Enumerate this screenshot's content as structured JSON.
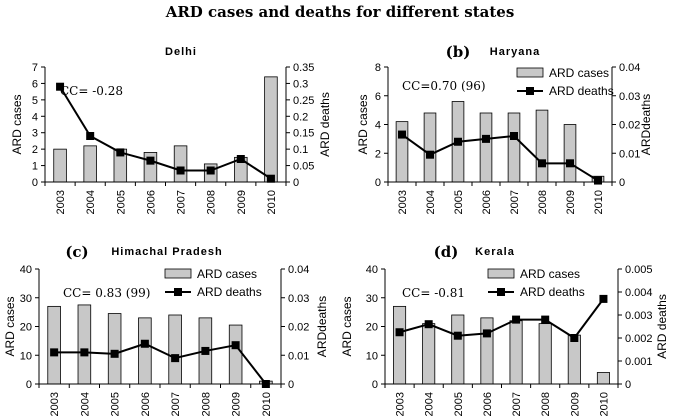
{
  "figure_title": "ARD cases and deaths for different states",
  "legend_labels": {
    "cases": "ARD cases",
    "deaths": "ARD deaths"
  },
  "colors": {
    "bar_fill": "#c8c8c8",
    "bar_stroke": "#000000",
    "line": "#000000"
  },
  "chart_data": [
    {
      "type": "bar",
      "panel_label": "",
      "title": "Delhi",
      "cc_label": "CC= -0.28",
      "categories": [
        "2003",
        "2004",
        "2005",
        "2006",
        "2007",
        "2008",
        "2009",
        "2010"
      ],
      "series": [
        {
          "name": "ARD cases",
          "type": "bar",
          "axis": "left",
          "values": [
            2.0,
            2.2,
            2.0,
            1.8,
            2.2,
            1.1,
            1.5,
            6.4
          ]
        },
        {
          "name": "ARD deaths",
          "type": "line",
          "axis": "right",
          "values": [
            0.29,
            0.14,
            0.09,
            0.065,
            0.035,
            0.035,
            0.07,
            0.01
          ]
        }
      ],
      "ylabel_left": "ARD cases",
      "ylim_left": [
        0,
        7
      ],
      "yticks_left": [
        "0",
        "1",
        "2",
        "3",
        "4",
        "5",
        "6",
        "7"
      ],
      "ylabel_right": "ARD deaths",
      "ylim_right": [
        0,
        0.35
      ],
      "yticks_right": [
        "0",
        "0.05",
        "0.1",
        "0.15",
        "0.2",
        "0.25",
        "0.3",
        "0.35"
      ],
      "legend_position": "none"
    },
    {
      "type": "bar",
      "panel_label": "(b)",
      "title": "Haryana",
      "cc_label": "CC=0.70 (96)",
      "categories": [
        "2003",
        "2004",
        "2005",
        "2006",
        "2007",
        "2008",
        "2009",
        "2010"
      ],
      "series": [
        {
          "name": "ARD cases",
          "type": "bar",
          "axis": "left",
          "values": [
            4.2,
            4.8,
            5.6,
            4.8,
            4.8,
            5.0,
            4.0,
            0.4
          ]
        },
        {
          "name": "ARD deaths",
          "type": "line",
          "axis": "right",
          "values": [
            0.0165,
            0.0095,
            0.014,
            0.015,
            0.016,
            0.0065,
            0.0065,
            0.0005
          ]
        }
      ],
      "ylabel_left": "ARD cases",
      "ylim_left": [
        0,
        8
      ],
      "yticks_left": [
        "0",
        "2",
        "4",
        "6",
        "8"
      ],
      "ylabel_right": "ARDdeaths",
      "ylim_right": [
        0,
        0.04
      ],
      "yticks_right": [
        "0",
        "0.01",
        "0.02",
        "0.03",
        "0.04"
      ],
      "legend_position": "top-right"
    },
    {
      "type": "bar",
      "panel_label": "(c)",
      "title": "Himachal Pradesh",
      "cc_label": "CC= 0.83 (99)",
      "categories": [
        "2003",
        "2004",
        "2005",
        "2006",
        "2007",
        "2008",
        "2009",
        "2010"
      ],
      "series": [
        {
          "name": "ARD cases",
          "type": "bar",
          "axis": "left",
          "values": [
            27,
            27.5,
            24.5,
            23,
            24,
            23,
            20.5,
            1
          ]
        },
        {
          "name": "ARD deaths",
          "type": "line",
          "axis": "right",
          "values": [
            0.011,
            0.011,
            0.0105,
            0.014,
            0.009,
            0.0115,
            0.0135,
            0.0
          ]
        }
      ],
      "ylabel_left": "ARD cases",
      "ylim_left": [
        0,
        40
      ],
      "yticks_left": [
        "0",
        "10",
        "20",
        "30",
        "40"
      ],
      "ylabel_right": "ARDdeaths",
      "ylim_right": [
        0,
        0.04
      ],
      "yticks_right": [
        "0",
        "0.01",
        "0.02",
        "0.03",
        "0.04"
      ],
      "legend_position": "top-right"
    },
    {
      "type": "bar",
      "panel_label": "(d)",
      "title": "Kerala",
      "cc_label": "CC= -0.81",
      "categories": [
        "2003",
        "2004",
        "2005",
        "2006",
        "2007",
        "2008",
        "2009",
        "2010"
      ],
      "series": [
        {
          "name": "ARD cases",
          "type": "bar",
          "axis": "left",
          "values": [
            27,
            21,
            24,
            23,
            22,
            21,
            17,
            4
          ]
        },
        {
          "name": "ARD deaths",
          "type": "line",
          "axis": "right",
          "values": [
            0.00225,
            0.0026,
            0.0021,
            0.0022,
            0.0028,
            0.0028,
            0.002,
            0.0037
          ]
        }
      ],
      "ylabel_left": "ARD cases",
      "ylim_left": [
        0,
        40
      ],
      "yticks_left": [
        "0",
        "10",
        "20",
        "30",
        "40"
      ],
      "ylabel_right": "ARD deaths",
      "ylim_right": [
        0,
        0.005
      ],
      "yticks_right": [
        "0",
        "0.001",
        "0.002",
        "0.003",
        "0.004",
        "0.005"
      ],
      "legend_position": "top-right"
    }
  ]
}
